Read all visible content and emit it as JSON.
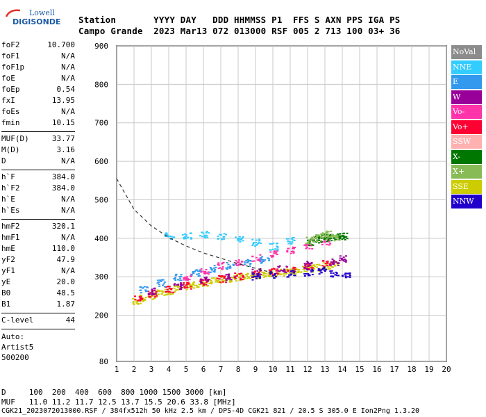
{
  "logo": {
    "line1": "Lowell",
    "line2": "DIGISONDE"
  },
  "header": {
    "line1": "Station       YYYY DAY   DDD HHMMSS P1  FFS S AXN PPS IGA PS",
    "line2": "Campo Grande  2023 Mar13 072 013000 RSF 005 2 713 100 03+ 36"
  },
  "params": {
    "group1": [
      {
        "k": "foF2",
        "v": "10.700"
      },
      {
        "k": "foF1",
        "v": "N/A"
      },
      {
        "k": "foF1p",
        "v": "N/A"
      },
      {
        "k": "foE",
        "v": "N/A"
      },
      {
        "k": "foEp",
        "v": "0.54"
      },
      {
        "k": "fxI",
        "v": "13.95"
      },
      {
        "k": "foEs",
        "v": "N/A"
      },
      {
        "k": "fmin",
        "v": "10.15"
      }
    ],
    "group2": [
      {
        "k": "MUF(D)",
        "v": "33.77"
      },
      {
        "k": "M(D)",
        "v": "3.16"
      },
      {
        "k": "D",
        "v": "N/A"
      }
    ],
    "group3": [
      {
        "k": "h`F",
        "v": "384.0"
      },
      {
        "k": "h`F2",
        "v": "384.0"
      },
      {
        "k": "h`E",
        "v": "N/A"
      },
      {
        "k": "h`Es",
        "v": "N/A"
      }
    ],
    "group4": [
      {
        "k": "hmF2",
        "v": "320.1"
      },
      {
        "k": "hmF1",
        "v": "N/A"
      },
      {
        "k": "hmE",
        "v": "110.0"
      },
      {
        "k": "yF2",
        "v": "47.9"
      },
      {
        "k": "yF1",
        "v": "N/A"
      },
      {
        "k": "yE",
        "v": "20.0"
      },
      {
        "k": "B0",
        "v": "48.5"
      },
      {
        "k": "B1",
        "v": "1.87"
      }
    ],
    "group5": [
      {
        "k": "C-level",
        "v": "44"
      }
    ],
    "auto": [
      "Auto:",
      "Artist5",
      "500200"
    ]
  },
  "legend": [
    {
      "label": "NoVal",
      "color": "#8c8c8c",
      "text": "#ffffff"
    },
    {
      "label": "NNE",
      "color": "#33ccff",
      "text": "#ffffff"
    },
    {
      "label": "E",
      "color": "#3399ee",
      "text": "#ffffff"
    },
    {
      "label": "W",
      "color": "#990099",
      "text": "#ffffff"
    },
    {
      "label": "Vo-",
      "color": "#ff33aa",
      "text": "#ffffff"
    },
    {
      "label": "Vo+",
      "color": "#ff0033",
      "text": "#ffffff"
    },
    {
      "label": "SSW",
      "color": "#ffb0b0",
      "text": "#ffffff"
    },
    {
      "label": "X-",
      "color": "#007700",
      "text": "#ffffff"
    },
    {
      "label": "X+",
      "color": "#88bb55",
      "text": "#ffffff"
    },
    {
      "label": "SSE",
      "color": "#cccc00",
      "text": "#ffffff"
    },
    {
      "label": "NNW",
      "color": "#2200cc",
      "text": "#ffffff"
    }
  ],
  "bottom": {
    "line1": "D     100  200  400  600  800 1000 1500 3000 [km]",
    "line2": "MUF   11.0 11.2 11.7 12.5 13.7 15.5 20.6 33.8 [MHz]",
    "line3": "CGK21_2023072013000.RSF / 384fx512h 50 kHz 2.5 km / DPS-4D CGK21 821 / 20.5 S 305.0 E Ion2Png 1.3.20"
  },
  "chart_data": {
    "type": "scatter",
    "xlim": [
      1,
      20
    ],
    "ylim": [
      80,
      900
    ],
    "xticks": [
      1,
      2,
      3,
      4,
      5,
      6,
      7,
      8,
      9,
      10,
      11,
      12,
      13,
      14,
      15,
      16,
      17,
      18,
      19,
      20
    ],
    "yticks": [
      80,
      200,
      300,
      400,
      500,
      600,
      700,
      800,
      900
    ],
    "grid": true,
    "legend_position": "right",
    "series": [
      {
        "name": "SSE",
        "color": "#cccc00",
        "points": [
          [
            2.1,
            238
          ],
          [
            2.5,
            245
          ],
          [
            3.0,
            252
          ],
          [
            3.5,
            258
          ],
          [
            4.0,
            264
          ],
          [
            4.5,
            270
          ],
          [
            5.0,
            276
          ],
          [
            5.5,
            281
          ],
          [
            6.0,
            286
          ],
          [
            6.5,
            290
          ],
          [
            7.0,
            294
          ],
          [
            7.5,
            297
          ],
          [
            8.0,
            300
          ],
          [
            8.5,
            302
          ],
          [
            9.0,
            305
          ],
          [
            9.5,
            308
          ],
          [
            10.0,
            311
          ],
          [
            10.5,
            313
          ],
          [
            11.0,
            316
          ],
          [
            11.5,
            320
          ],
          [
            12.0,
            323
          ],
          [
            12.5,
            326
          ],
          [
            13.0,
            330
          ],
          [
            13.5,
            333
          ]
        ]
      },
      {
        "name": "Vo+",
        "color": "#ff0033",
        "points": [
          [
            2.2,
            246
          ],
          [
            3.0,
            258
          ],
          [
            4.0,
            268
          ],
          [
            5.0,
            279
          ],
          [
            6.0,
            288
          ],
          [
            7.0,
            296
          ],
          [
            8.0,
            303
          ],
          [
            9.0,
            309
          ],
          [
            10.0,
            316
          ],
          [
            11.0,
            321
          ],
          [
            12.0,
            329
          ],
          [
            13.0,
            336
          ]
        ]
      },
      {
        "name": "W",
        "color": "#990099",
        "points": [
          [
            3.0,
            264
          ],
          [
            4.5,
            278
          ],
          [
            6.0,
            292
          ],
          [
            7.5,
            301
          ],
          [
            9.0,
            314
          ],
          [
            10.5,
            322
          ],
          [
            12.0,
            333
          ],
          [
            13.5,
            340
          ],
          [
            14.0,
            347
          ]
        ]
      },
      {
        "name": "Vo-",
        "color": "#ff33aa",
        "points": [
          [
            5.0,
            300
          ],
          [
            6.0,
            315
          ],
          [
            7.0,
            330
          ],
          [
            8.0,
            340
          ],
          [
            9.0,
            350
          ],
          [
            10.0,
            362
          ],
          [
            11.0,
            370
          ],
          [
            12.0,
            383
          ],
          [
            13.0,
            393
          ]
        ]
      },
      {
        "name": "E",
        "color": "#3399ee",
        "points": [
          [
            2.5,
            268
          ],
          [
            3.5,
            285
          ],
          [
            4.5,
            300
          ],
          [
            5.5,
            312
          ],
          [
            6.5,
            322
          ],
          [
            7.5,
            330
          ],
          [
            8.5,
            338
          ],
          [
            9.5,
            346
          ]
        ]
      },
      {
        "name": "NNE",
        "color": "#33ccff",
        "points": [
          [
            4.0,
            408
          ],
          [
            5.0,
            409
          ],
          [
            6.0,
            412
          ],
          [
            7.0,
            405
          ],
          [
            8.0,
            400
          ],
          [
            9.0,
            390
          ],
          [
            10.0,
            380
          ],
          [
            11.0,
            395
          ]
        ]
      },
      {
        "name": "X-",
        "color": "#007700",
        "points": [
          [
            12.2,
            392
          ],
          [
            12.6,
            398
          ],
          [
            13.0,
            402
          ],
          [
            13.4,
            404
          ],
          [
            13.8,
            405
          ],
          [
            14.0,
            406
          ]
        ]
      },
      {
        "name": "X+",
        "color": "#88bb55",
        "points": [
          [
            12.1,
            396
          ],
          [
            12.5,
            402
          ],
          [
            12.9,
            408
          ],
          [
            13.2,
            412
          ],
          [
            13.6,
            403
          ]
        ]
      },
      {
        "name": "NNW",
        "color": "#2200cc",
        "points": [
          [
            9.0,
            302
          ],
          [
            10.0,
            306
          ],
          [
            11.0,
            310
          ],
          [
            12.0,
            312
          ],
          [
            12.8,
            318
          ],
          [
            13.5,
            310
          ],
          [
            14.2,
            304
          ]
        ]
      }
    ],
    "dashed_curve": [
      [
        1.0,
        555
      ],
      [
        2.0,
        475
      ],
      [
        3.0,
        432
      ],
      [
        4.0,
        402
      ],
      [
        5.0,
        380
      ],
      [
        6.0,
        362
      ],
      [
        7.0,
        348
      ],
      [
        8.0,
        334
      ],
      [
        9.0,
        322
      ],
      [
        10.0,
        310
      ]
    ]
  }
}
